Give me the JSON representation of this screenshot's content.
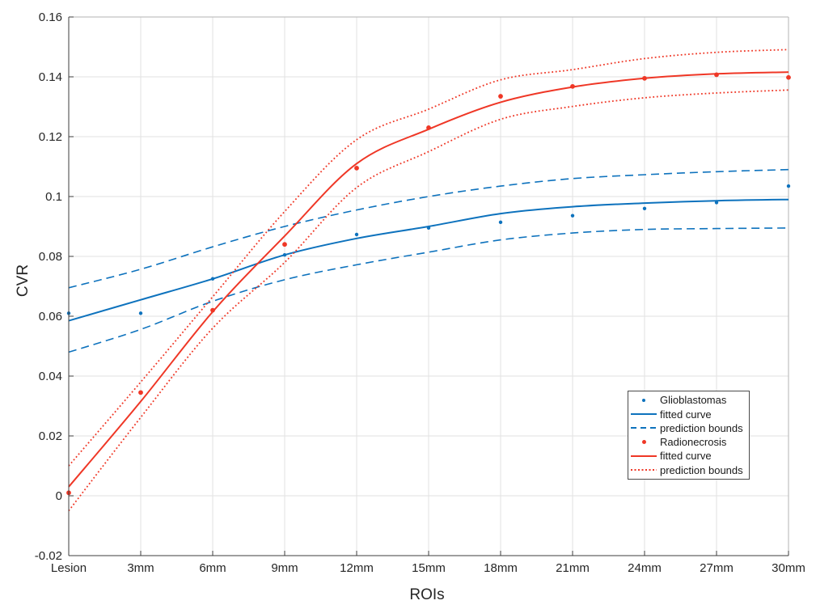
{
  "chart_data": {
    "type": "line",
    "title": "",
    "xlabel": "ROIs",
    "ylabel": "CVR",
    "categories": [
      "Lesion",
      "3mm",
      "6mm",
      "9mm",
      "12mm",
      "15mm",
      "18mm",
      "21mm",
      "24mm",
      "27mm",
      "30mm"
    ],
    "ylim": [
      -0.02,
      0.16
    ],
    "y_ticks": [
      {
        "value": -0.02,
        "label": "-0.02"
      },
      {
        "value": 0,
        "label": "0"
      },
      {
        "value": 0.02,
        "label": "0.02"
      },
      {
        "value": 0.04,
        "label": "0.04"
      },
      {
        "value": 0.06,
        "label": "0.06"
      },
      {
        "value": 0.08,
        "label": "0.08"
      },
      {
        "value": 0.1,
        "label": "0.1"
      },
      {
        "value": 0.12,
        "label": "0.12"
      },
      {
        "value": 0.14,
        "label": "0.14"
      },
      {
        "value": 0.16,
        "label": "0.16"
      }
    ],
    "grid": true,
    "colors": {
      "glioblastomas": "#0d72bd",
      "radionecrosis": "#ef3726",
      "grid": "#e2e2e2",
      "axis": "#3d3d3d",
      "box": "#b3b3b3",
      "text": "#262626"
    },
    "series": [
      {
        "name": "Glioblastomas",
        "role": "scatter",
        "group": "glioblastomas",
        "values": [
          0.061,
          0.061,
          0.0725,
          0.0805,
          0.0873,
          0.0895,
          0.0914,
          0.0936,
          0.096,
          0.098,
          0.1035
        ]
      },
      {
        "name": "fitted curve",
        "role": "fit",
        "group": "glioblastomas",
        "values": [
          0.0585,
          0.0655,
          0.0725,
          0.0805,
          0.086,
          0.09,
          0.0943,
          0.0966,
          0.0978,
          0.0986,
          0.099
        ]
      },
      {
        "name": "prediction bounds",
        "role": "bounds",
        "group": "glioblastomas",
        "upper": [
          0.0695,
          0.0757,
          0.0832,
          0.09,
          0.0955,
          0.1,
          0.1035,
          0.106,
          0.1073,
          0.1083,
          0.109
        ],
        "lower": [
          0.048,
          0.0556,
          0.065,
          0.0722,
          0.0772,
          0.0814,
          0.0855,
          0.0878,
          0.089,
          0.0893,
          0.0895
        ]
      },
      {
        "name": "Radionecrosis",
        "role": "scatter",
        "group": "radionecrosis",
        "values": [
          0.001,
          0.0345,
          0.062,
          0.084,
          0.1095,
          0.123,
          0.1335,
          0.1368,
          0.1395,
          0.1407,
          0.1398
        ]
      },
      {
        "name": "fitted curve",
        "role": "fit",
        "group": "radionecrosis",
        "values": [
          0.003,
          0.0315,
          0.0615,
          0.0868,
          0.111,
          0.1225,
          0.1315,
          0.1366,
          0.1395,
          0.141,
          0.1416
        ]
      },
      {
        "name": "prediction bounds",
        "role": "bounds",
        "group": "radionecrosis",
        "upper": [
          0.01,
          0.038,
          0.0665,
          0.095,
          0.119,
          0.1292,
          0.139,
          0.1424,
          0.1461,
          0.1482,
          0.1491
        ],
        "lower": [
          -0.005,
          0.0262,
          0.056,
          0.078,
          0.103,
          0.115,
          0.1258,
          0.1301,
          0.133,
          0.1346,
          0.1356
        ]
      }
    ],
    "legend": {
      "position": "inside lower right",
      "items": [
        {
          "label": "Glioblastomas",
          "marker": "dot",
          "group": "glioblastomas"
        },
        {
          "label": "fitted curve",
          "marker": "solid-line",
          "group": "glioblastomas"
        },
        {
          "label": "prediction bounds",
          "marker": "dashed-line",
          "group": "glioblastomas"
        },
        {
          "label": "Radionecrosis",
          "marker": "dot",
          "group": "radionecrosis"
        },
        {
          "label": "fitted curve",
          "marker": "solid-line",
          "group": "radionecrosis"
        },
        {
          "label": "prediction bounds",
          "marker": "dotted-line",
          "group": "radionecrosis"
        }
      ]
    }
  }
}
